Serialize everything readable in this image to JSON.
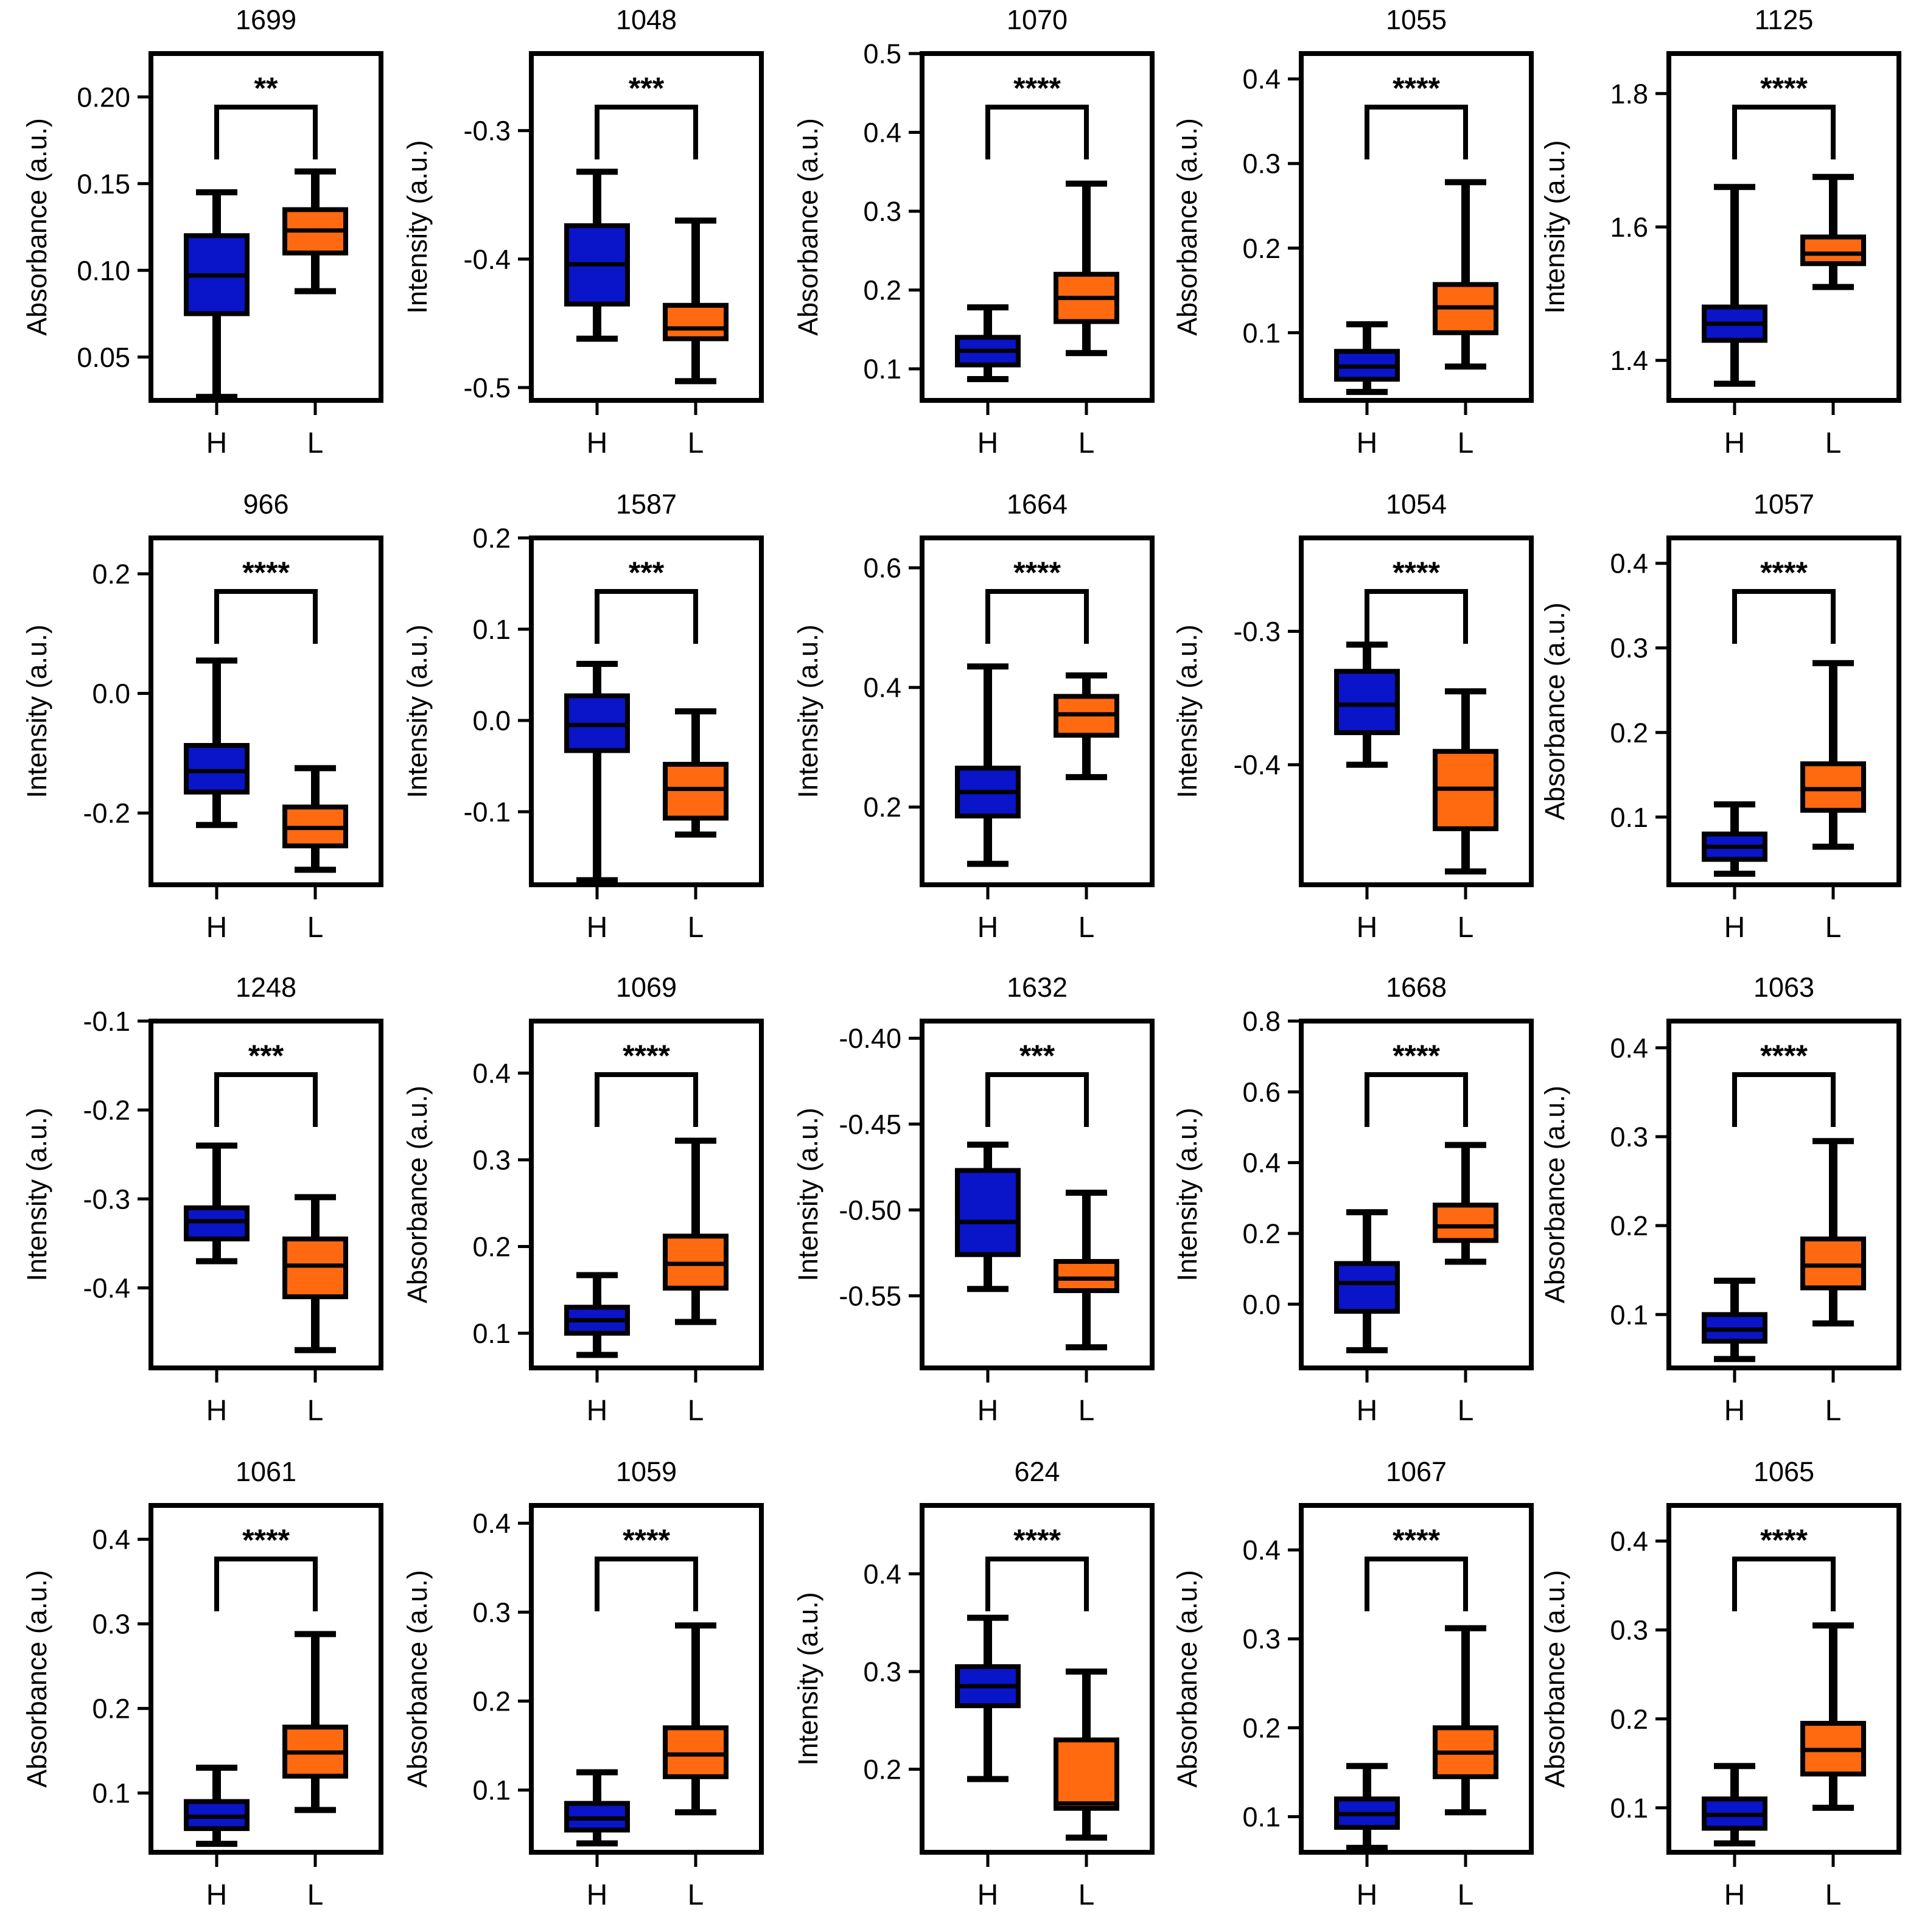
{
  "colors": {
    "h_box": "#0a14c8",
    "h_dot": "#8ab4f0",
    "l_box": "#ff6a10",
    "l_dot": "#ffc08a",
    "line": "#000000"
  },
  "categories": [
    "H",
    "L"
  ],
  "chart_data": [
    {
      "type": "box",
      "title": "1699",
      "ylabel": "Absorbance (a.u.)",
      "ylim": [
        0.025,
        0.225
      ],
      "ticks": [
        "0.05",
        "0.10",
        "0.15",
        "0.20"
      ],
      "significance": "**",
      "series": [
        {
          "name": "H",
          "min": 0.027,
          "q1": 0.075,
          "median": 0.097,
          "q3": 0.12,
          "max": 0.145
        },
        {
          "name": "L",
          "min": 0.088,
          "q1": 0.11,
          "median": 0.123,
          "q3": 0.135,
          "max": 0.157
        }
      ]
    },
    {
      "type": "box",
      "title": "1048",
      "ylabel": "Intensity (a.u.)",
      "ylim": [
        -0.51,
        -0.24
      ],
      "ticks": [
        "-0.3",
        "-0.4",
        "-0.5"
      ],
      "significance": "***",
      "series": [
        {
          "name": "H",
          "min": -0.462,
          "q1": -0.435,
          "median": -0.404,
          "q3": -0.374,
          "max": -0.332
        },
        {
          "name": "L",
          "min": -0.495,
          "q1": -0.462,
          "median": -0.454,
          "q3": -0.436,
          "max": -0.37
        }
      ]
    },
    {
      "type": "box",
      "title": "1070",
      "ylabel": "Absorbance (a.u.)",
      "ylim": [
        0.06,
        0.5
      ],
      "ticks": [
        "0.1",
        "0.2",
        "0.3",
        "0.4",
        "0.5"
      ],
      "significance": "****",
      "series": [
        {
          "name": "H",
          "min": 0.087,
          "q1": 0.105,
          "median": 0.123,
          "q3": 0.14,
          "max": 0.178
        },
        {
          "name": "L",
          "min": 0.12,
          "q1": 0.16,
          "median": 0.19,
          "q3": 0.22,
          "max": 0.335
        }
      ]
    },
    {
      "type": "box",
      "title": "1055",
      "ylabel": "Absorbance (a.u.)",
      "ylim": [
        0.02,
        0.43
      ],
      "ticks": [
        "0.1",
        "0.2",
        "0.3",
        "0.4"
      ],
      "significance": "****",
      "series": [
        {
          "name": "H",
          "min": 0.03,
          "q1": 0.045,
          "median": 0.06,
          "q3": 0.078,
          "max": 0.11
        },
        {
          "name": "L",
          "min": 0.06,
          "q1": 0.1,
          "median": 0.13,
          "q3": 0.157,
          "max": 0.278
        }
      ]
    },
    {
      "type": "box",
      "title": "1125",
      "ylabel": "Intensity (a.u.)",
      "ylim": [
        1.34,
        1.86
      ],
      "ticks": [
        "1.4",
        "1.6",
        "1.8"
      ],
      "significance": "****",
      "series": [
        {
          "name": "H",
          "min": 1.365,
          "q1": 1.43,
          "median": 1.455,
          "q3": 1.48,
          "max": 1.66
        },
        {
          "name": "L",
          "min": 1.51,
          "q1": 1.545,
          "median": 1.56,
          "q3": 1.585,
          "max": 1.675
        }
      ]
    },
    {
      "type": "box",
      "title": "966",
      "ylabel": "Intensity (a.u.)",
      "ylim": [
        -0.32,
        0.26
      ],
      "ticks": [
        "0.2",
        "0.0",
        "-0.2"
      ],
      "significance": "****",
      "series": [
        {
          "name": "H",
          "min": -0.22,
          "q1": -0.165,
          "median": -0.13,
          "q3": -0.087,
          "max": 0.055
        },
        {
          "name": "L",
          "min": -0.295,
          "q1": -0.255,
          "median": -0.225,
          "q3": -0.19,
          "max": -0.125
        }
      ]
    },
    {
      "type": "box",
      "title": "1587",
      "ylabel": "Intensity (a.u.)",
      "ylim": [
        -0.18,
        0.2
      ],
      "ticks": [
        "0.2",
        "0.1",
        "0.0",
        "-0.1"
      ],
      "significance": "***",
      "series": [
        {
          "name": "H",
          "min": -0.175,
          "q1": -0.033,
          "median": -0.005,
          "q3": 0.027,
          "max": 0.062
        },
        {
          "name": "L",
          "min": -0.125,
          "q1": -0.107,
          "median": -0.075,
          "q3": -0.048,
          "max": 0.01
        }
      ]
    },
    {
      "type": "box",
      "title": "1664",
      "ylabel": "Intensity (a.u.)",
      "ylim": [
        0.07,
        0.65
      ],
      "ticks": [
        "0.2",
        "0.4",
        "0.6"
      ],
      "significance": "****",
      "series": [
        {
          "name": "H",
          "min": 0.105,
          "q1": 0.185,
          "median": 0.225,
          "q3": 0.265,
          "max": 0.435
        },
        {
          "name": "L",
          "min": 0.25,
          "q1": 0.32,
          "median": 0.355,
          "q3": 0.385,
          "max": 0.42
        }
      ]
    },
    {
      "type": "box",
      "title": "1054",
      "ylabel": "Intensity (a.u.)",
      "ylim": [
        -0.49,
        -0.23
      ],
      "ticks": [
        "-0.3",
        "-0.4"
      ],
      "significance": "****",
      "series": [
        {
          "name": "H",
          "min": -0.4,
          "q1": -0.376,
          "median": -0.355,
          "q3": -0.33,
          "max": -0.31
        },
        {
          "name": "L",
          "min": -0.48,
          "q1": -0.448,
          "median": -0.418,
          "q3": -0.39,
          "max": -0.345
        }
      ]
    },
    {
      "type": "box",
      "title": "1057",
      "ylabel": "Absorbance (a.u.)",
      "ylim": [
        0.02,
        0.43
      ],
      "ticks": [
        "0.1",
        "0.2",
        "0.3",
        "0.4"
      ],
      "significance": "****",
      "series": [
        {
          "name": "H",
          "min": 0.033,
          "q1": 0.05,
          "median": 0.065,
          "q3": 0.08,
          "max": 0.115
        },
        {
          "name": "L",
          "min": 0.065,
          "q1": 0.108,
          "median": 0.133,
          "q3": 0.163,
          "max": 0.282
        }
      ]
    },
    {
      "type": "box",
      "title": "1248",
      "ylabel": "Intensity (a.u.)",
      "ylim": [
        -0.49,
        -0.1
      ],
      "ticks": [
        "-0.1",
        "-0.2",
        "-0.3",
        "-0.4"
      ],
      "significance": "***",
      "series": [
        {
          "name": "H",
          "min": -0.37,
          "q1": -0.345,
          "median": -0.325,
          "q3": -0.31,
          "max": -0.24
        },
        {
          "name": "L",
          "min": -0.47,
          "q1": -0.41,
          "median": -0.375,
          "q3": -0.345,
          "max": -0.298
        }
      ]
    },
    {
      "type": "box",
      "title": "1069",
      "ylabel": "Absorbance (a.u.)",
      "ylim": [
        0.06,
        0.46
      ],
      "ticks": [
        "0.1",
        "0.2",
        "0.3",
        "0.4"
      ],
      "significance": "****",
      "series": [
        {
          "name": "H",
          "min": 0.075,
          "q1": 0.1,
          "median": 0.115,
          "q3": 0.13,
          "max": 0.167
        },
        {
          "name": "L",
          "min": 0.113,
          "q1": 0.152,
          "median": 0.18,
          "q3": 0.212,
          "max": 0.322
        }
      ]
    },
    {
      "type": "box",
      "title": "1632",
      "ylabel": "Intensity (a.u.)",
      "ylim": [
        -0.592,
        -0.39
      ],
      "ticks": [
        "-0.40",
        "-0.45",
        "-0.50",
        "-0.55"
      ],
      "significance": "***",
      "series": [
        {
          "name": "H",
          "min": -0.546,
          "q1": -0.526,
          "median": -0.507,
          "q3": -0.477,
          "max": -0.462
        },
        {
          "name": "L",
          "min": -0.58,
          "q1": -0.547,
          "median": -0.54,
          "q3": -0.53,
          "max": -0.49
        }
      ]
    },
    {
      "type": "box",
      "title": "1668",
      "ylabel": "Intensity (a.u.)",
      "ylim": [
        -0.18,
        0.8
      ],
      "ticks": [
        "0.8",
        "0.6",
        "0.4",
        "0.2",
        "0.0"
      ],
      "significance": "****",
      "series": [
        {
          "name": "H",
          "min": -0.13,
          "q1": -0.02,
          "median": 0.06,
          "q3": 0.115,
          "max": 0.26
        },
        {
          "name": "L",
          "min": 0.12,
          "q1": 0.18,
          "median": 0.22,
          "q3": 0.28,
          "max": 0.45
        }
      ]
    },
    {
      "type": "box",
      "title": "1063",
      "ylabel": "Absorbance (a.u.)",
      "ylim": [
        0.04,
        0.43
      ],
      "ticks": [
        "0.1",
        "0.2",
        "0.3",
        "0.4"
      ],
      "significance": "****",
      "series": [
        {
          "name": "H",
          "min": 0.05,
          "q1": 0.07,
          "median": 0.083,
          "q3": 0.1,
          "max": 0.138
        },
        {
          "name": "L",
          "min": 0.09,
          "q1": 0.13,
          "median": 0.155,
          "q3": 0.185,
          "max": 0.295
        }
      ]
    },
    {
      "type": "box",
      "title": "1061",
      "ylabel": "Absorbance (a.u.)",
      "ylim": [
        0.03,
        0.44
      ],
      "ticks": [
        "0.1",
        "0.2",
        "0.3",
        "0.4"
      ],
      "significance": "****",
      "series": [
        {
          "name": "H",
          "min": 0.04,
          "q1": 0.058,
          "median": 0.072,
          "q3": 0.09,
          "max": 0.13
        },
        {
          "name": "L",
          "min": 0.08,
          "q1": 0.12,
          "median": 0.148,
          "q3": 0.178,
          "max": 0.288
        }
      ]
    },
    {
      "type": "box",
      "title": "1059",
      "ylabel": "Absorbance (a.u.)",
      "ylim": [
        0.03,
        0.42
      ],
      "ticks": [
        "0.1",
        "0.2",
        "0.3",
        "0.4"
      ],
      "significance": "****",
      "series": [
        {
          "name": "H",
          "min": 0.04,
          "q1": 0.055,
          "median": 0.068,
          "q3": 0.085,
          "max": 0.12
        },
        {
          "name": "L",
          "min": 0.075,
          "q1": 0.115,
          "median": 0.14,
          "q3": 0.17,
          "max": 0.285
        }
      ]
    },
    {
      "type": "box",
      "title": "624",
      "ylabel": "Intensity (a.u.)",
      "ylim": [
        0.115,
        0.47
      ],
      "ticks": [
        "0.2",
        "0.3",
        "0.4"
      ],
      "significance": "****",
      "series": [
        {
          "name": "H",
          "min": 0.19,
          "q1": 0.265,
          "median": 0.285,
          "q3": 0.305,
          "max": 0.355
        },
        {
          "name": "L",
          "min": 0.13,
          "q1": 0.16,
          "median": 0.165,
          "q3": 0.23,
          "max": 0.3
        }
      ]
    },
    {
      "type": "box",
      "title": "1067",
      "ylabel": "Absorbance (a.u.)",
      "ylim": [
        0.06,
        0.45
      ],
      "ticks": [
        "0.1",
        "0.2",
        "0.3",
        "0.4"
      ],
      "significance": "****",
      "series": [
        {
          "name": "H",
          "min": 0.065,
          "q1": 0.088,
          "median": 0.103,
          "q3": 0.12,
          "max": 0.157
        },
        {
          "name": "L",
          "min": 0.105,
          "q1": 0.145,
          "median": 0.172,
          "q3": 0.2,
          "max": 0.312
        }
      ]
    },
    {
      "type": "box",
      "title": "1065",
      "ylabel": "Absorbance (a.u.)",
      "ylim": [
        0.05,
        0.44
      ],
      "ticks": [
        "0.1",
        "0.2",
        "0.3",
        "0.4"
      ],
      "significance": "****",
      "series": [
        {
          "name": "H",
          "min": 0.06,
          "q1": 0.077,
          "median": 0.092,
          "q3": 0.11,
          "max": 0.147
        },
        {
          "name": "L",
          "min": 0.1,
          "q1": 0.138,
          "median": 0.165,
          "q3": 0.195,
          "max": 0.305
        }
      ]
    }
  ]
}
